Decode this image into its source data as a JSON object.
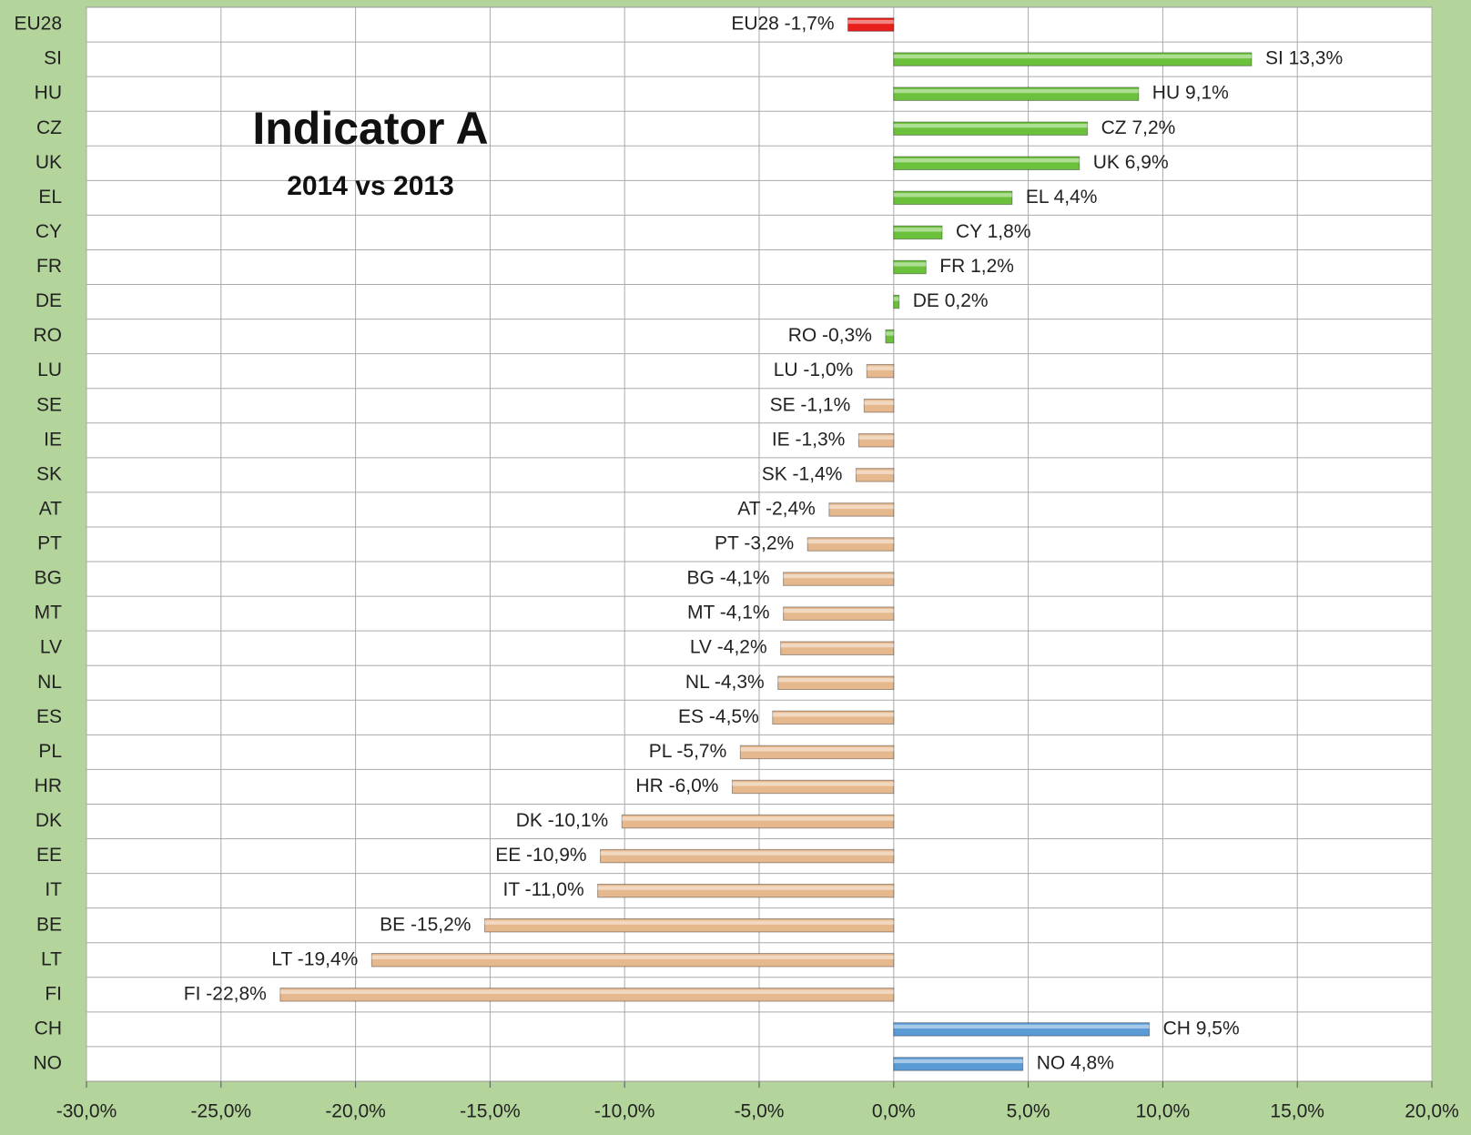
{
  "chart_data": {
    "type": "bar",
    "orientation": "horizontal",
    "title": "Indicator A",
    "subtitle": "2014 vs 2013",
    "categories": [
      "EU28",
      "SI",
      "HU",
      "CZ",
      "UK",
      "EL",
      "CY",
      "FR",
      "DE",
      "RO",
      "LU",
      "SE",
      "IE",
      "SK",
      "AT",
      "PT",
      "BG",
      "MT",
      "LV",
      "NL",
      "ES",
      "PL",
      "HR",
      "DK",
      "EE",
      "IT",
      "BE",
      "LT",
      "FI",
      "CH",
      "NO"
    ],
    "values": [
      -1.7,
      13.3,
      9.1,
      7.2,
      6.9,
      4.4,
      1.8,
      1.2,
      0.2,
      -0.3,
      -1.0,
      -1.1,
      -1.3,
      -1.4,
      -2.4,
      -3.2,
      -4.1,
      -4.1,
      -4.2,
      -4.3,
      -4.5,
      -5.7,
      -6.0,
      -10.1,
      -10.9,
      -11.0,
      -15.2,
      -19.4,
      -22.8,
      9.5,
      4.8
    ],
    "value_labels": [
      "EU28 -1,7%",
      "SI 13,3%",
      "HU 9,1%",
      "CZ 7,2%",
      "UK 6,9%",
      "EL 4,4%",
      "CY 1,8%",
      "FR 1,2%",
      "DE 0,2%",
      "RO -0,3%",
      "LU -1,0%",
      "SE -1,1%",
      "IE -1,3%",
      "SK -1,4%",
      "AT -2,4%",
      "PT -3,2%",
      "BG -4,1%",
      "MT -4,1%",
      "LV -4,2%",
      "NL -4,3%",
      "ES -4,5%",
      "PL -5,7%",
      "HR -6,0%",
      "DK -10,1%",
      "EE -10,9%",
      "IT -11,0%",
      "BE -15,2%",
      "LT -19,4%",
      "FI -22,8%",
      "CH 9,5%",
      "NO 4,8%"
    ],
    "colors": [
      "#e8201c",
      "#6cc13c",
      "#6cc13c",
      "#6cc13c",
      "#6cc13c",
      "#6cc13c",
      "#6cc13c",
      "#6cc13c",
      "#6cc13c",
      "#6cc13c",
      "#e6b88e",
      "#e6b88e",
      "#e6b88e",
      "#e6b88e",
      "#e6b88e",
      "#e6b88e",
      "#e6b88e",
      "#e6b88e",
      "#e6b88e",
      "#e6b88e",
      "#e6b88e",
      "#e6b88e",
      "#e6b88e",
      "#e6b88e",
      "#e6b88e",
      "#e6b88e",
      "#e6b88e",
      "#e6b88e",
      "#e6b88e",
      "#5b9bd5",
      "#5b9bd5"
    ],
    "xlim": [
      -30,
      20
    ],
    "xticks": [
      {
        "value": -30,
        "label": "-30,0%"
      },
      {
        "value": -25,
        "label": "-25,0%"
      },
      {
        "value": -20,
        "label": "-20,0%"
      },
      {
        "value": -15,
        "label": "-15,0%"
      },
      {
        "value": -10,
        "label": "-10,0%"
      },
      {
        "value": -5,
        "label": "-5,0%"
      },
      {
        "value": 0,
        "label": "0,0%"
      },
      {
        "value": 5,
        "label": "5,0%"
      },
      {
        "value": 10,
        "label": "10,0%"
      },
      {
        "value": 15,
        "label": "15,0%"
      },
      {
        "value": 20,
        "label": "20,0%"
      }
    ],
    "grid": true
  }
}
